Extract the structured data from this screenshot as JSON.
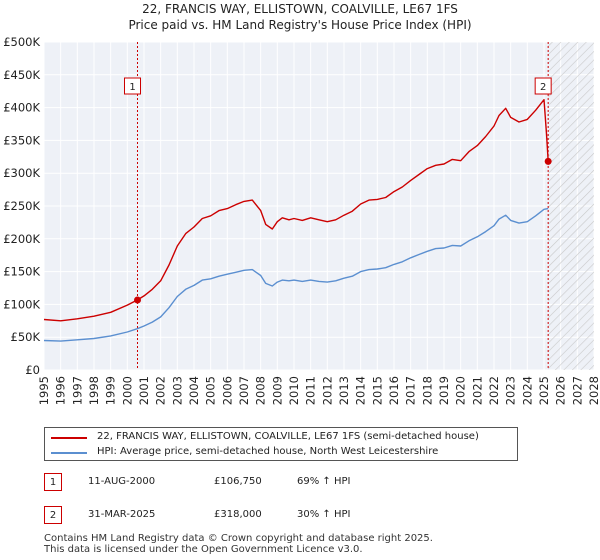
{
  "chart_data": {
    "type": "line",
    "title": "22, FRANCIS WAY, ELLISTOWN, COALVILLE, LE67 1FS",
    "subtitle": "Price paid vs. HM Land Registry's House Price Index (HPI)",
    "xlim": [
      1995,
      2028
    ],
    "ylim": [
      0,
      500000
    ],
    "x_ticks": [
      1995,
      1996,
      1997,
      1998,
      1999,
      2000,
      2001,
      2002,
      2003,
      2004,
      2005,
      2006,
      2007,
      2008,
      2009,
      2010,
      2011,
      2012,
      2013,
      2014,
      2015,
      2016,
      2017,
      2018,
      2019,
      2020,
      2021,
      2022,
      2023,
      2024,
      2025,
      2026,
      2027,
      2028
    ],
    "y_ticks": [
      0,
      50000,
      100000,
      150000,
      200000,
      250000,
      300000,
      350000,
      400000,
      450000,
      500000
    ],
    "y_tick_labels": [
      "£0",
      "£50K",
      "£100K",
      "£150K",
      "£200K",
      "£250K",
      "£300K",
      "£350K",
      "£400K",
      "£450K",
      "£500K"
    ],
    "hatch_from": 2025.25,
    "series": [
      {
        "name": "22, FRANCIS WAY, ELLISTOWN, COALVILLE, LE67 1FS (semi-detached house)",
        "color": "#cc0000",
        "x": [
          1995,
          1996,
          1997,
          1998,
          1999,
          2000,
          2000.6,
          2001,
          2001.5,
          2002,
          2002.5,
          2003,
          2003.5,
          2004,
          2004.5,
          2005,
          2005.5,
          2006,
          2006.5,
          2007,
          2007.5,
          2008,
          2008.3,
          2008.7,
          2009,
          2009.3,
          2009.7,
          2010,
          2010.5,
          2011,
          2011.5,
          2012,
          2012.5,
          2013,
          2013.5,
          2014,
          2014.5,
          2015,
          2015.5,
          2016,
          2016.5,
          2017,
          2017.5,
          2018,
          2018.5,
          2019,
          2019.5,
          2020,
          2020.5,
          2021,
          2021.5,
          2022,
          2022.3,
          2022.7,
          2023,
          2023.5,
          2024,
          2024.5,
          2025,
          2025.15,
          2025.25
        ],
        "values": [
          77000,
          75000,
          78000,
          82000,
          88000,
          99000,
          106750,
          113000,
          123000,
          136000,
          160000,
          189000,
          208000,
          218000,
          231000,
          235000,
          243000,
          246000,
          252000,
          257000,
          259000,
          243000,
          222000,
          215000,
          226000,
          232000,
          229000,
          231000,
          228000,
          232000,
          229000,
          226000,
          229000,
          236000,
          242000,
          253000,
          259000,
          260000,
          263000,
          272000,
          279000,
          289000,
          298000,
          307000,
          312000,
          314000,
          321000,
          319000,
          333000,
          342000,
          356000,
          372000,
          388000,
          399000,
          385000,
          378000,
          382000,
          396000,
          412000,
          360000,
          318000
        ]
      },
      {
        "name": "HPI: Average price, semi-detached house, North West Leicestershire",
        "color": "#5b8fd0",
        "x": [
          1995,
          1996,
          1997,
          1998,
          1999,
          2000,
          2000.6,
          2001,
          2001.5,
          2002,
          2002.5,
          2003,
          2003.5,
          2004,
          2004.5,
          2005,
          2005.5,
          2006,
          2006.5,
          2007,
          2007.5,
          2008,
          2008.3,
          2008.7,
          2009,
          2009.3,
          2009.7,
          2010,
          2010.5,
          2011,
          2011.5,
          2012,
          2012.5,
          2013,
          2013.5,
          2014,
          2014.5,
          2015,
          2015.5,
          2016,
          2016.5,
          2017,
          2017.5,
          2018,
          2018.5,
          2019,
          2019.5,
          2020,
          2020.5,
          2021,
          2021.5,
          2022,
          2022.3,
          2022.7,
          2023,
          2023.5,
          2024,
          2024.5,
          2025,
          2025.25
        ],
        "values": [
          45000,
          44000,
          46000,
          48000,
          52000,
          58000,
          63000,
          67000,
          73000,
          81000,
          95000,
          112000,
          123000,
          129000,
          137000,
          139000,
          143000,
          146000,
          149000,
          152000,
          153000,
          144000,
          132000,
          128000,
          134000,
          137000,
          136000,
          137000,
          135000,
          137000,
          135000,
          134000,
          136000,
          140000,
          143000,
          150000,
          153000,
          154000,
          156000,
          161000,
          165000,
          171000,
          176000,
          181000,
          185000,
          186000,
          190000,
          189000,
          197000,
          203000,
          211000,
          220000,
          230000,
          236000,
          228000,
          224000,
          226000,
          235000,
          245000,
          246000
        ]
      }
    ],
    "sales": [
      {
        "marker": "1",
        "x": 2000.61,
        "value": 106750
      },
      {
        "marker": "2",
        "x": 2025.25,
        "value": 318000
      }
    ]
  },
  "legend": {
    "property_label": "22, FRANCIS WAY, ELLISTOWN, COALVILLE, LE67 1FS (semi-detached house)",
    "hpi_label": "HPI: Average price, semi-detached house, North West Leicestershire"
  },
  "sales_table": [
    {
      "marker": "1",
      "date": "11-AUG-2000",
      "price": "£106,750",
      "hpi": "69% ↑ HPI"
    },
    {
      "marker": "2",
      "date": "31-MAR-2025",
      "price": "£318,000",
      "hpi": "30% ↑ HPI"
    }
  ],
  "footer": {
    "line1": "Contains HM Land Registry data © Crown copyright and database right 2025.",
    "line2": "This data is licensed under the Open Government Licence v3.0."
  }
}
